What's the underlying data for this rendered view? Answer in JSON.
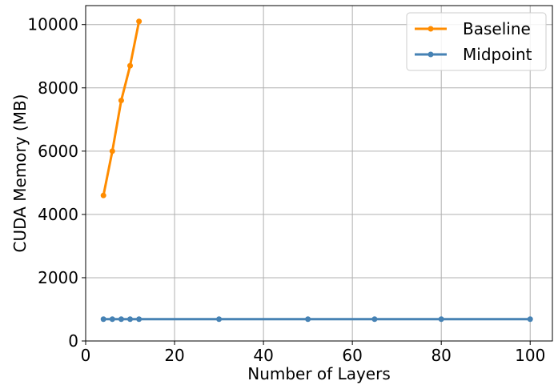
{
  "chart_data": {
    "type": "line",
    "title": "",
    "xlabel": "Number of Layers",
    "ylabel": "CUDA Memory (MB)",
    "xlim": [
      0,
      105
    ],
    "ylim": [
      0,
      10600
    ],
    "x_ticks": [
      0,
      20,
      40,
      60,
      80,
      100
    ],
    "y_ticks": [
      0,
      2000,
      4000,
      6000,
      8000,
      10000
    ],
    "grid": true,
    "legend_position": "top-right",
    "series": [
      {
        "name": "Baseline",
        "color": "#ff8c00",
        "x": [
          4,
          6,
          8,
          10,
          12
        ],
        "y": [
          4600,
          6000,
          7600,
          8700,
          10100
        ]
      },
      {
        "name": "Midpoint",
        "color": "#4682b4",
        "x": [
          4,
          6,
          8,
          10,
          12,
          30,
          50,
          65,
          80,
          100
        ],
        "y": [
          690,
          690,
          690,
          690,
          690,
          690,
          690,
          690,
          690,
          690
        ]
      }
    ]
  }
}
